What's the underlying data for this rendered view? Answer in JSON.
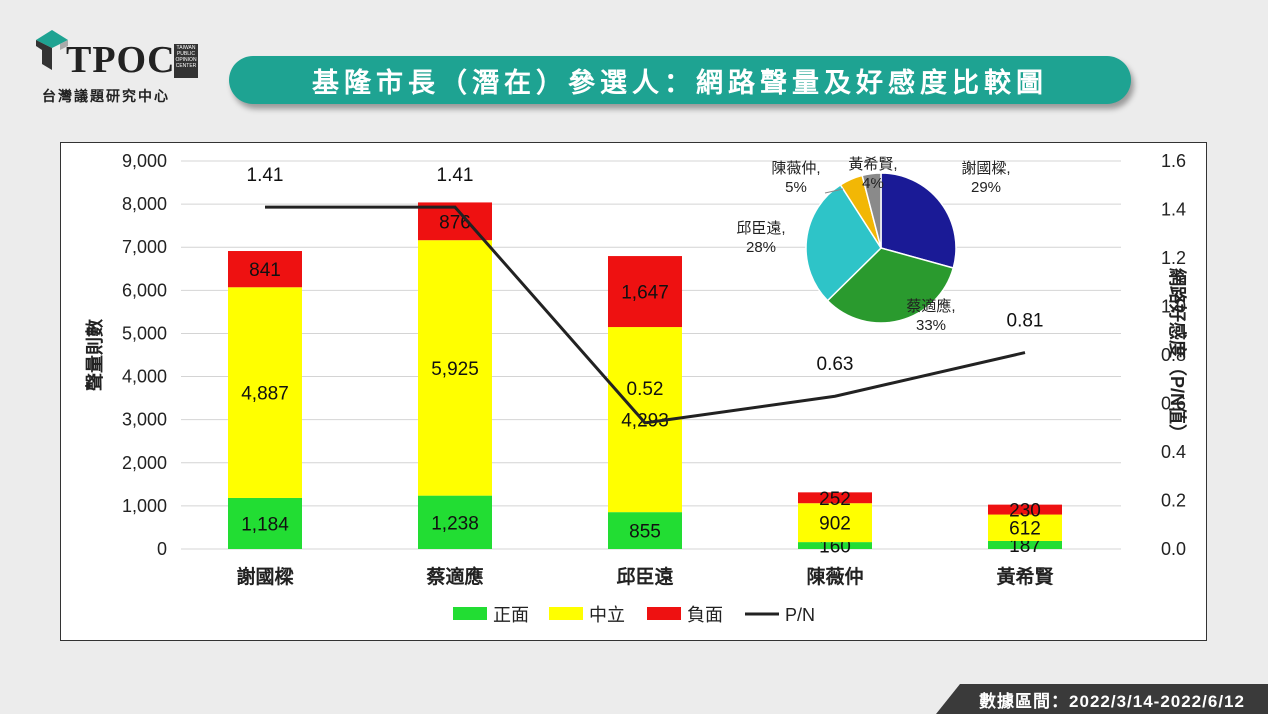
{
  "logo": {
    "text": "TPOC",
    "side_text": "TAIWAN PUBLIC OPINION CENTER",
    "cn_name": "台灣議題研究中心"
  },
  "title": "基隆市長（潛在）參選人：網路聲量及好感度比較圖",
  "footer": "數據區間：2022/3/14-2022/6/12",
  "chart_data": [
    {
      "type": "bar",
      "stacked": true,
      "categories": [
        "謝國樑",
        "蔡適應",
        "邱臣遠",
        "陳薇仲",
        "黃希賢"
      ],
      "series": [
        {
          "name": "正面",
          "color": "#22dd33",
          "values": [
            1184,
            1238,
            855,
            160,
            187
          ]
        },
        {
          "name": "中立",
          "color": "#ffff00",
          "values": [
            4887,
            5925,
            4293,
            902,
            612
          ]
        },
        {
          "name": "負面",
          "color": "#ee1111",
          "values": [
            841,
            876,
            1647,
            252,
            230
          ]
        }
      ],
      "line": {
        "name": "P/N",
        "color": "#222222",
        "values": [
          1.41,
          1.41,
          0.52,
          0.63,
          0.81
        ],
        "labels": [
          "1.41",
          "1.41",
          "0.52",
          "0.63",
          "0.81"
        ]
      },
      "ylabel": "聲量則數",
      "y2label": "網路好感度（P/N值）",
      "ylim": [
        0,
        9000
      ],
      "y2lim": [
        0,
        1.6
      ],
      "yticks": [
        "0",
        "1,000",
        "2,000",
        "3,000",
        "4,000",
        "5,000",
        "6,000",
        "7,000",
        "8,000",
        "9,000"
      ],
      "y2ticks": [
        "0.0",
        "0.2",
        "0.4",
        "0.6",
        "0.8",
        "1.0",
        "1.2",
        "1.4",
        "1.6"
      ],
      "bar_labels": [
        [
          "1,184",
          "1,238",
          "855",
          "160",
          "187"
        ],
        [
          "4,887",
          "5,925",
          "4,293",
          "902",
          "612"
        ],
        [
          "841",
          "876",
          "1,647",
          "252",
          "230"
        ]
      ],
      "grid": true,
      "legend": "bottom"
    },
    {
      "type": "pie",
      "slices": [
        {
          "name": "謝國樑",
          "value": 29,
          "label": "29%",
          "color": "#1a1a96"
        },
        {
          "name": "蔡適應",
          "value": 33,
          "label": "33%",
          "color": "#2a9a2e"
        },
        {
          "name": "邱臣遠",
          "value": 28,
          "label": "28%",
          "color": "#2ec4c8"
        },
        {
          "name": "陳薇仲",
          "value": 5,
          "label": "5%",
          "color": "#f2b705"
        },
        {
          "name": "黃希賢",
          "value": 4,
          "label": "4%",
          "color": "#8a8a8a"
        }
      ]
    }
  ]
}
